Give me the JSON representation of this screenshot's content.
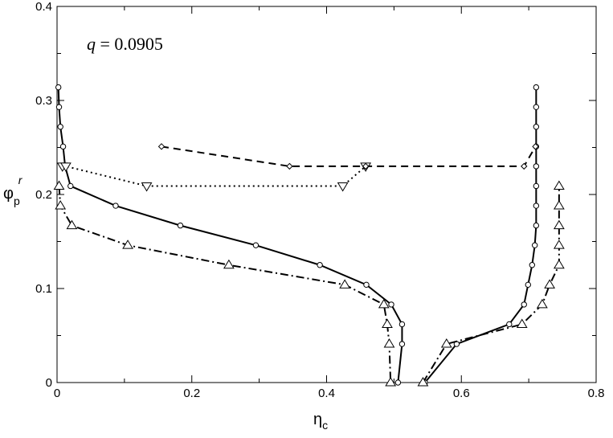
{
  "chart_data": {
    "type": "line",
    "title": "",
    "annotation": {
      "var": "q",
      "rest": " = 0.0905"
    },
    "xlabel": {
      "main": "η",
      "sub": "c"
    },
    "ylabel": {
      "main": "φ",
      "sub": "p",
      "sup": "r"
    },
    "xlim": [
      0,
      0.8
    ],
    "ylim": [
      0,
      0.4
    ],
    "x_ticks": [
      "0",
      "0.2",
      "0.4",
      "0.6",
      "0.8"
    ],
    "y_ticks": [
      "0",
      "0.1",
      "0.2",
      "0.3",
      "0.4"
    ],
    "x_tick_values": [
      0,
      0.2,
      0.4,
      0.6,
      0.8
    ],
    "y_tick_values": [
      0,
      0.1,
      0.2,
      0.3,
      0.4
    ],
    "grid": false,
    "series": [
      {
        "style": "solid",
        "marker": "circle",
        "points": [
          [
            0.002,
            0.314
          ],
          [
            0.003,
            0.293
          ],
          [
            0.005,
            0.272
          ],
          [
            0.009,
            0.251
          ],
          [
            0.012,
            0.23
          ],
          [
            0.02,
            0.209
          ],
          [
            0.087,
            0.188
          ],
          [
            0.183,
            0.167
          ],
          [
            0.295,
            0.146
          ],
          [
            0.39,
            0.125
          ],
          [
            0.459,
            0.104
          ],
          [
            0.496,
            0.083
          ],
          [
            0.512,
            0.062
          ],
          [
            0.512,
            0.041
          ],
          [
            0.506,
            0.0
          ]
        ]
      },
      {
        "style": "solid",
        "marker": "circle",
        "points": [
          [
            0.546,
            0.0
          ],
          [
            0.593,
            0.041
          ],
          [
            0.671,
            0.062
          ],
          [
            0.693,
            0.083
          ],
          [
            0.699,
            0.104
          ],
          [
            0.705,
            0.125
          ],
          [
            0.709,
            0.146
          ],
          [
            0.711,
            0.167
          ],
          [
            0.711,
            0.188
          ],
          [
            0.711,
            0.209
          ],
          [
            0.711,
            0.23
          ],
          [
            0.711,
            0.251
          ],
          [
            0.711,
            0.272
          ],
          [
            0.711,
            0.293
          ],
          [
            0.711,
            0.314
          ]
        ]
      },
      {
        "style": "dashdot",
        "marker": "triangle-up",
        "points": [
          [
            0.003,
            0.209
          ],
          [
            0.005,
            0.188
          ],
          [
            0.022,
            0.167
          ],
          [
            0.105,
            0.146
          ],
          [
            0.255,
            0.125
          ],
          [
            0.427,
            0.104
          ],
          [
            0.485,
            0.083
          ],
          [
            0.49,
            0.062
          ],
          [
            0.493,
            0.041
          ],
          [
            0.495,
            0.0
          ]
        ]
      },
      {
        "style": "dashdot",
        "marker": "triangle-up",
        "points": [
          [
            0.543,
            0.0
          ],
          [
            0.578,
            0.041
          ],
          [
            0.69,
            0.062
          ],
          [
            0.72,
            0.083
          ],
          [
            0.731,
            0.104
          ],
          [
            0.745,
            0.125
          ],
          [
            0.745,
            0.146
          ],
          [
            0.745,
            0.167
          ],
          [
            0.745,
            0.188
          ],
          [
            0.745,
            0.209
          ]
        ]
      },
      {
        "style": "dotted",
        "marker": "triangle-down",
        "points": [
          [
            0.008,
            0.23
          ],
          [
            0.013,
            0.23
          ],
          [
            0.133,
            0.209
          ],
          [
            0.424,
            0.209
          ],
          [
            0.458,
            0.23
          ]
        ]
      },
      {
        "style": "dashed",
        "marker": "diamond",
        "points": [
          [
            0.155,
            0.251
          ],
          [
            0.345,
            0.23
          ],
          [
            0.458,
            0.23
          ],
          [
            0.693,
            0.23
          ],
          [
            0.71,
            0.251
          ]
        ]
      }
    ]
  }
}
